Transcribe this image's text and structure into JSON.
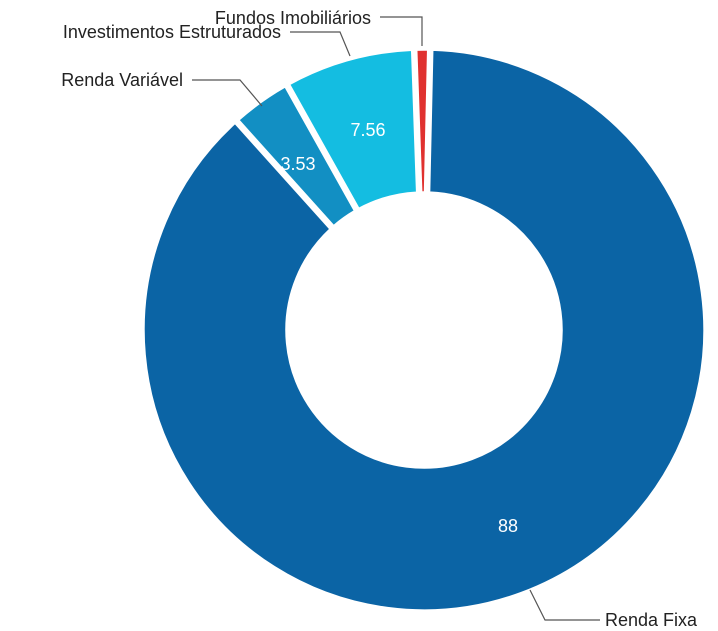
{
  "chart_data": {
    "type": "pie",
    "donut": true,
    "title": "",
    "categories": [
      "Renda Fixa",
      "Renda Variável",
      "Investimentos Estruturados",
      "Fundos Imobiliários"
    ],
    "values": [
      88,
      3.53,
      7.56,
      0.91
    ],
    "value_labels": [
      "88",
      "3.53",
      "7.56",
      ""
    ],
    "colors": [
      "#0b64a5",
      "#128fc3",
      "#14bde1",
      "#e0312f"
    ],
    "legend": "none"
  }
}
